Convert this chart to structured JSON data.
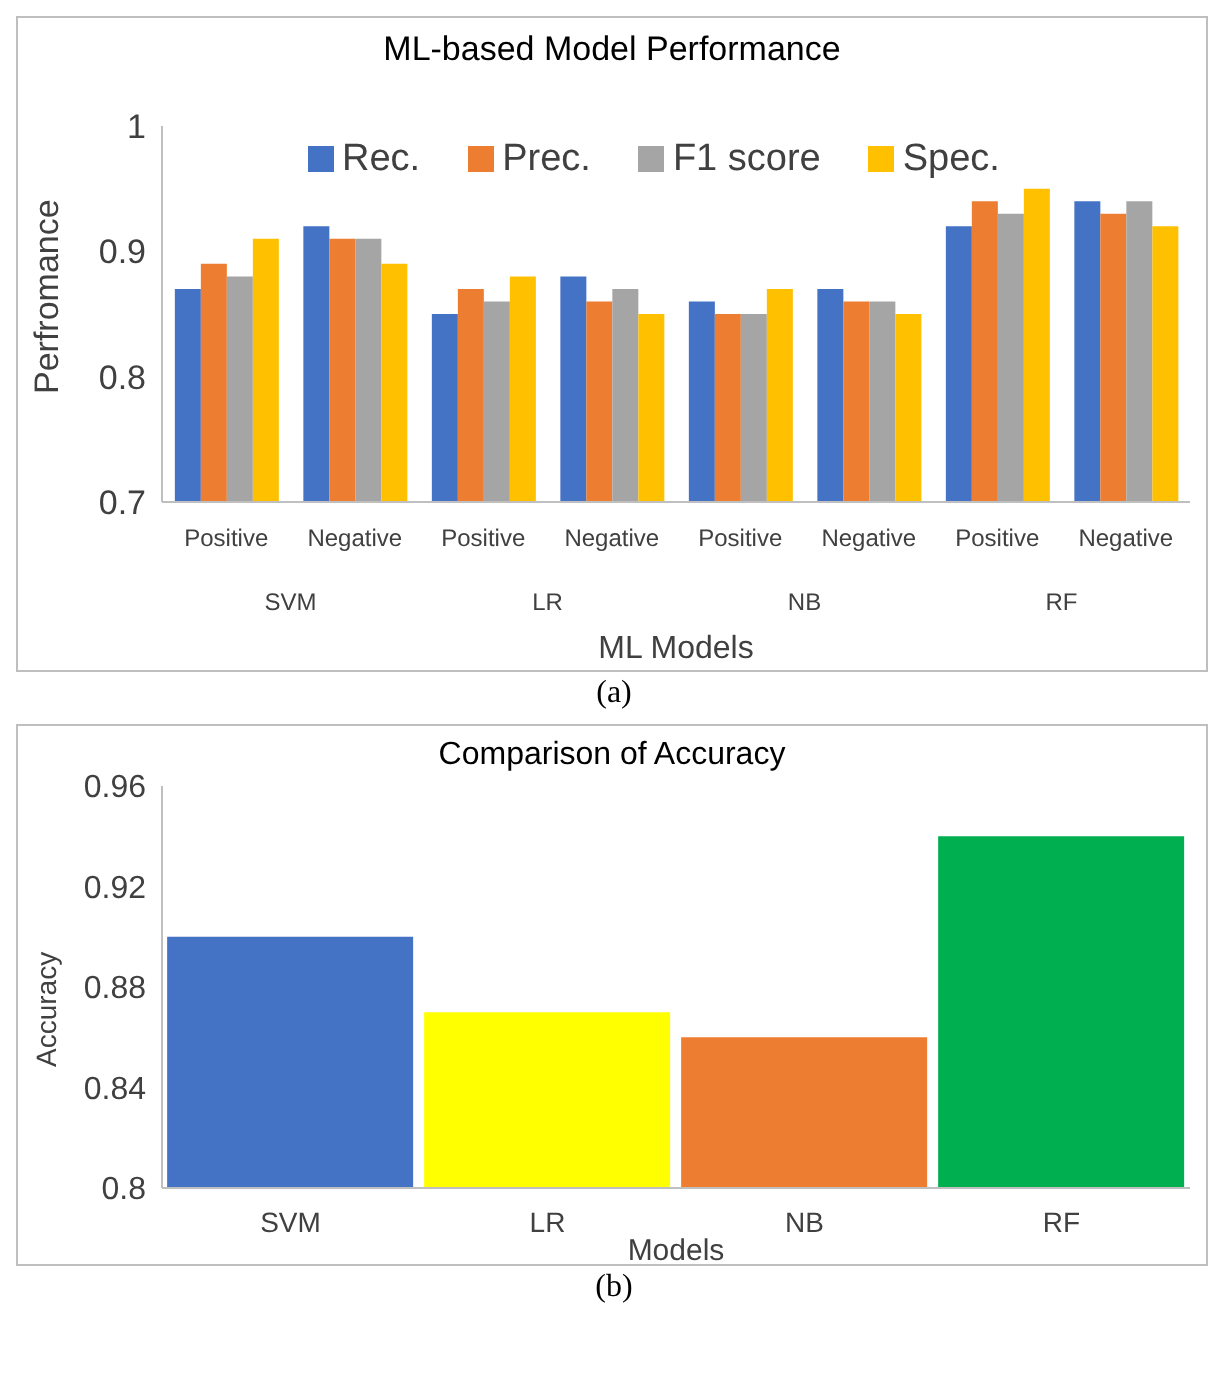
{
  "chart_data": [
    {
      "type": "bar",
      "title": "ML-based Model Performance",
      "xlabel": "ML Models",
      "ylabel": "Perfromance",
      "categories": [
        "Positive",
        "Negative",
        "Positive",
        "Negative",
        "Positive",
        "Negative",
        "Positive",
        "Negative"
      ],
      "series": [
        {
          "name": "Rec.",
          "color": "#4472c4",
          "values": [
            0.87,
            0.92,
            0.85,
            0.88,
            0.86,
            0.87,
            0.92,
            0.94
          ]
        },
        {
          "name": "Prec.",
          "color": "#ed7d31",
          "values": [
            0.89,
            0.91,
            0.87,
            0.86,
            0.85,
            0.86,
            0.94,
            0.93
          ]
        },
        {
          "name": "F1 score",
          "color": "#a5a5a5",
          "values": [
            0.88,
            0.91,
            0.86,
            0.87,
            0.85,
            0.86,
            0.93,
            0.94
          ]
        },
        {
          "name": "Spec.",
          "color": "#ffc000",
          "values": [
            0.91,
            0.89,
            0.88,
            0.85,
            0.87,
            0.85,
            0.95,
            0.92
          ]
        }
      ],
      "ylim": [
        0.7,
        1
      ],
      "yticks": [
        0.7,
        0.8,
        0.9,
        1
      ],
      "grid": false,
      "legend": "top",
      "annotations": [
        "SVM",
        "LR",
        "NB",
        "RF",
        "(a)"
      ]
    },
    {
      "type": "bar",
      "title": "Comparison of Accuracy",
      "xlabel": "Models",
      "ylabel": "Accuracy",
      "categories": [
        "SVM",
        "LR",
        "NB",
        "RF"
      ],
      "values": [
        0.9,
        0.87,
        0.86,
        0.94
      ],
      "colors": [
        "#4472c4",
        "#ffff00",
        "#ed7d31",
        "#00b050"
      ],
      "ylim": [
        0.8,
        0.96
      ],
      "yticks": [
        0.8,
        0.84,
        0.88,
        0.92,
        0.96
      ],
      "grid": false,
      "legend": false,
      "annotations": [
        "(b)"
      ]
    }
  ]
}
